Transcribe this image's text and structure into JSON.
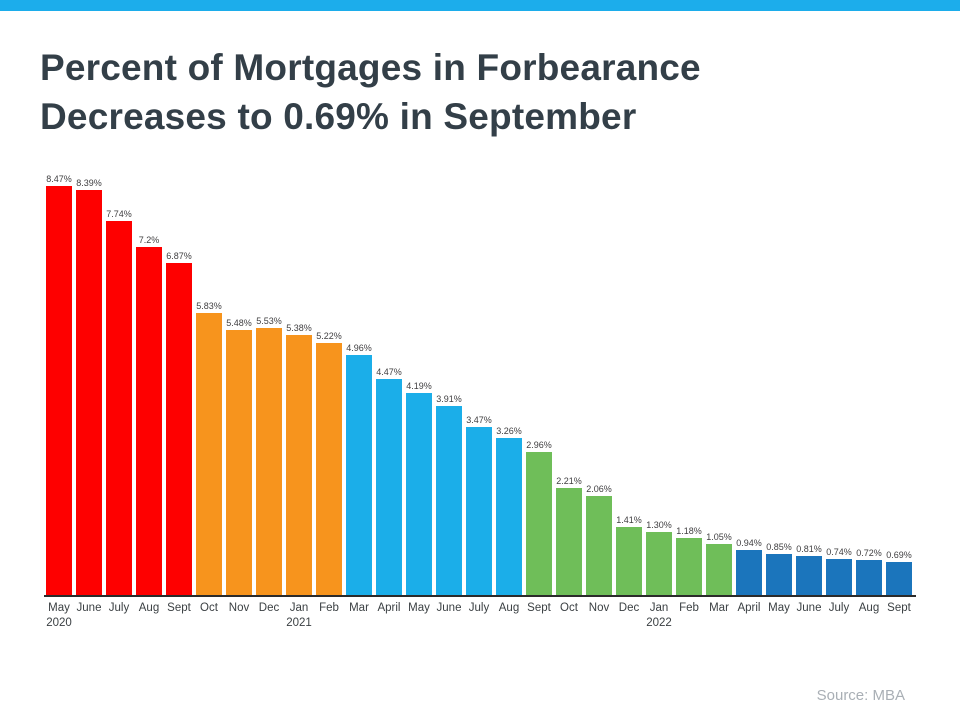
{
  "page": {
    "title_line1": "Percent of Mortgages in Forbearance",
    "title_line2": "Decreases to 0.69% in September",
    "source": "Source: MBA"
  },
  "colors": {
    "top_stripe": "#1CADEB",
    "title_text": "#333F48",
    "axis_line": "#2B2B2B",
    "value_label_text": "#414042",
    "month_label_text": "#3B4043",
    "source_text": "#A9AFB5",
    "red": "#FE0000",
    "orange": "#F7941D",
    "light_blue": "#1BAEE9",
    "green": "#6FBE59",
    "dark_blue": "#1B75BC"
  },
  "chart_data": {
    "type": "bar",
    "title": "Percent of Mortgages in Forbearance Decreases to 0.69% in September",
    "xlabel": "",
    "ylabel": "",
    "unit": "%",
    "ylim": [
      0,
      9
    ],
    "grid": false,
    "legend": "none",
    "axis_note": "value labels shown above each bar; x axis labeled by month with year shown at May 2020, Jan 2021, Jan 2022",
    "points": [
      {
        "month": "May",
        "year": "2020",
        "value": 8.47,
        "label": "8.47%",
        "color": "red"
      },
      {
        "month": "June",
        "year": "",
        "value": 8.39,
        "label": "8.39%",
        "color": "red"
      },
      {
        "month": "July",
        "year": "",
        "value": 7.74,
        "label": "7.74%",
        "color": "red"
      },
      {
        "month": "Aug",
        "year": "",
        "value": 7.2,
        "label": "7.2%",
        "color": "red"
      },
      {
        "month": "Sept",
        "year": "",
        "value": 6.87,
        "label": "6.87%",
        "color": "red"
      },
      {
        "month": "Oct",
        "year": "",
        "value": 5.83,
        "label": "5.83%",
        "color": "orange"
      },
      {
        "month": "Nov",
        "year": "",
        "value": 5.48,
        "label": "5.48%",
        "color": "orange"
      },
      {
        "month": "Dec",
        "year": "",
        "value": 5.53,
        "label": "5.53%",
        "color": "orange"
      },
      {
        "month": "Jan",
        "year": "2021",
        "value": 5.38,
        "label": "5.38%",
        "color": "orange"
      },
      {
        "month": "Feb",
        "year": "",
        "value": 5.22,
        "label": "5.22%",
        "color": "orange"
      },
      {
        "month": "Mar",
        "year": "",
        "value": 4.96,
        "label": "4.96%",
        "color": "light_blue"
      },
      {
        "month": "April",
        "year": "",
        "value": 4.47,
        "label": "4.47%",
        "color": "light_blue"
      },
      {
        "month": "May",
        "year": "",
        "value": 4.19,
        "label": "4.19%",
        "color": "light_blue"
      },
      {
        "month": "June",
        "year": "",
        "value": 3.91,
        "label": "3.91%",
        "color": "light_blue"
      },
      {
        "month": "July",
        "year": "",
        "value": 3.47,
        "label": "3.47%",
        "color": "light_blue"
      },
      {
        "month": "Aug",
        "year": "",
        "value": 3.26,
        "label": "3.26%",
        "color": "light_blue"
      },
      {
        "month": "Sept",
        "year": "",
        "value": 2.96,
        "label": "2.96%",
        "color": "green"
      },
      {
        "month": "Oct",
        "year": "",
        "value": 2.21,
        "label": "2.21%",
        "color": "green"
      },
      {
        "month": "Nov",
        "year": "",
        "value": 2.06,
        "label": "2.06%",
        "color": "green"
      },
      {
        "month": "Dec",
        "year": "",
        "value": 1.41,
        "label": "1.41%",
        "color": "green"
      },
      {
        "month": "Jan",
        "year": "2022",
        "value": 1.3,
        "label": "1.30%",
        "color": "green"
      },
      {
        "month": "Feb",
        "year": "",
        "value": 1.18,
        "label": "1.18%",
        "color": "green"
      },
      {
        "month": "Mar",
        "year": "",
        "value": 1.05,
        "label": "1.05%",
        "color": "green"
      },
      {
        "month": "April",
        "year": "",
        "value": 0.94,
        "label": "0.94%",
        "color": "dark_blue"
      },
      {
        "month": "May",
        "year": "",
        "value": 0.85,
        "label": "0.85%",
        "color": "dark_blue"
      },
      {
        "month": "June",
        "year": "",
        "value": 0.81,
        "label": "0.81%",
        "color": "dark_blue"
      },
      {
        "month": "July",
        "year": "",
        "value": 0.74,
        "label": "0.74%",
        "color": "dark_blue"
      },
      {
        "month": "Aug",
        "year": "",
        "value": 0.72,
        "label": "0.72%",
        "color": "dark_blue"
      },
      {
        "month": "Sept",
        "year": "",
        "value": 0.69,
        "label": "0.69%",
        "color": "dark_blue"
      }
    ]
  }
}
